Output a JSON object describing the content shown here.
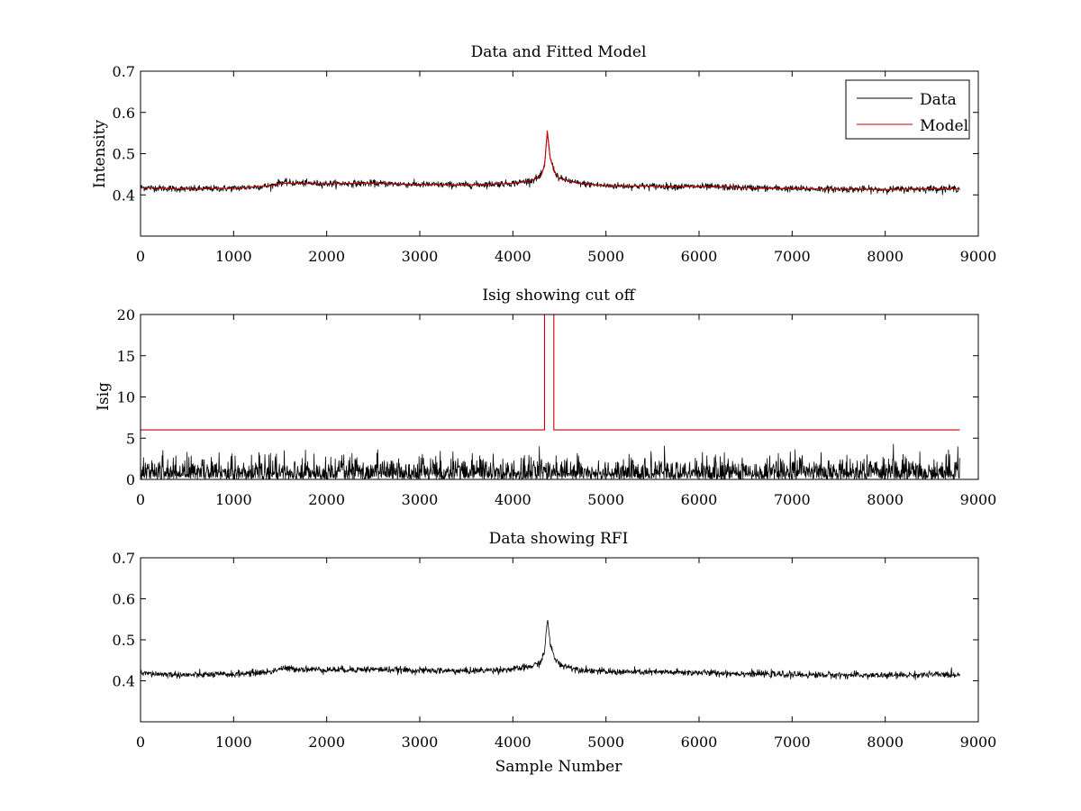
{
  "figure": {
    "background": "#ffffff"
  },
  "chart_data": [
    {
      "type": "line",
      "title": "Data and Fitted Model",
      "xlabel": "",
      "ylabel": "Intensity",
      "xlim": [
        0,
        9000
      ],
      "ylim": [
        0.3,
        0.7
      ],
      "xticks": [
        0,
        1000,
        2000,
        3000,
        4000,
        5000,
        6000,
        7000,
        8000,
        9000
      ],
      "yticks": [
        0.4,
        0.5,
        0.6,
        0.7
      ],
      "ytick_labels": [
        "0.4",
        "0.5",
        "0.6",
        "0.7"
      ],
      "legend": {
        "placement": "top-right",
        "entries": [
          "Data",
          "Model"
        ]
      },
      "series": [
        {
          "name": "Data",
          "color": "#000000",
          "style": "noisy",
          "noise": 0.004,
          "x": [
            0,
            500,
            1000,
            1400,
            1500,
            2000,
            2500,
            3000,
            3500,
            4000,
            4200,
            4300,
            4340,
            4370,
            4400,
            4450,
            4500,
            4700,
            5000,
            6000,
            7000,
            7500,
            8000,
            8500,
            8800
          ],
          "y": [
            0.418,
            0.414,
            0.416,
            0.422,
            0.43,
            0.427,
            0.428,
            0.425,
            0.424,
            0.428,
            0.435,
            0.445,
            0.47,
            0.553,
            0.49,
            0.455,
            0.44,
            0.428,
            0.422,
            0.42,
            0.415,
            0.414,
            0.413,
            0.415,
            0.415
          ]
        },
        {
          "name": "Model",
          "color": "#cc0000",
          "style": "smooth",
          "x": [
            0,
            500,
            1000,
            1400,
            1500,
            2000,
            2500,
            3000,
            3500,
            4000,
            4200,
            4300,
            4340,
            4370,
            4400,
            4450,
            4500,
            4700,
            5000,
            6000,
            7000,
            7500,
            8000,
            8500,
            8800
          ],
          "y": [
            0.418,
            0.414,
            0.416,
            0.422,
            0.428,
            0.427,
            0.428,
            0.425,
            0.424,
            0.428,
            0.435,
            0.445,
            0.47,
            0.555,
            0.49,
            0.455,
            0.44,
            0.428,
            0.422,
            0.42,
            0.415,
            0.414,
            0.413,
            0.415,
            0.415
          ]
        }
      ]
    },
    {
      "type": "line",
      "title": "Isig showing cut off",
      "xlabel": "",
      "ylabel": "Isig",
      "xlim": [
        0,
        9000
      ],
      "ylim": [
        0,
        20
      ],
      "xticks": [
        0,
        1000,
        2000,
        3000,
        4000,
        5000,
        6000,
        7000,
        8000,
        9000
      ],
      "yticks": [
        0,
        5,
        10,
        15,
        20
      ],
      "ytick_labels": [
        "0",
        "5",
        "10",
        "15",
        "20"
      ],
      "series": [
        {
          "color": "#cc0000",
          "style": "step",
          "x": [
            0,
            4340,
            4340,
            4440,
            4440,
            8800
          ],
          "y": [
            6,
            6,
            20,
            20,
            6,
            6
          ]
        },
        {
          "color": "#000000",
          "style": "absnoise",
          "noise": 1.2,
          "x": [
            0,
            8800
          ],
          "y": [
            0,
            0
          ]
        }
      ]
    },
    {
      "type": "line",
      "title": "Data showing RFI",
      "xlabel": "Sample Number",
      "ylabel": "",
      "xlim": [
        0,
        9000
      ],
      "ylim": [
        0.3,
        0.7
      ],
      "xticks": [
        0,
        1000,
        2000,
        3000,
        4000,
        5000,
        6000,
        7000,
        8000,
        9000
      ],
      "yticks": [
        0.4,
        0.5,
        0.6,
        0.7
      ],
      "ytick_labels": [
        "0.4",
        "0.5",
        "0.6",
        "0.7"
      ],
      "series": [
        {
          "color": "#000000",
          "style": "noisy",
          "noise": 0.004,
          "x": [
            0,
            500,
            1000,
            1400,
            1500,
            2000,
            2500,
            3000,
            3500,
            4000,
            4200,
            4300,
            4340,
            4370,
            4400,
            4450,
            4500,
            4700,
            5000,
            6000,
            7000,
            7500,
            8000,
            8500,
            8800
          ],
          "y": [
            0.418,
            0.414,
            0.416,
            0.422,
            0.43,
            0.427,
            0.428,
            0.425,
            0.424,
            0.428,
            0.435,
            0.445,
            0.47,
            0.553,
            0.49,
            0.455,
            0.44,
            0.428,
            0.422,
            0.42,
            0.415,
            0.414,
            0.413,
            0.415,
            0.415
          ]
        }
      ]
    }
  ]
}
